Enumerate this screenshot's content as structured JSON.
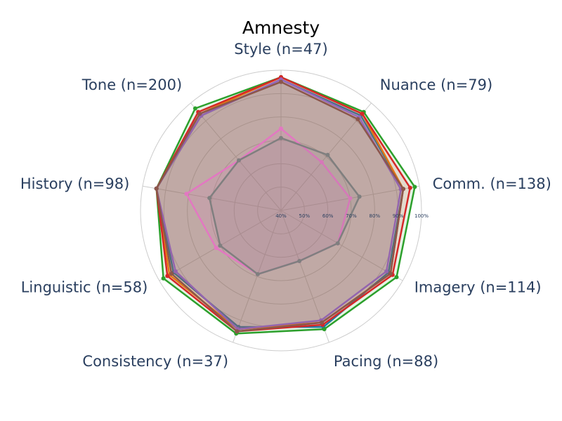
{
  "chart_data": {
    "type": "radar",
    "title": "Amnesty",
    "axes": [
      "Style (n=47)",
      "Nuance (n=79)",
      "Comm. (n=138)",
      "Imagery (n=114)",
      "Pacing (n=88)",
      "Consistency (n=37)",
      "Linguistic (n=58)",
      "History (n=98)",
      "Tone (n=200)"
    ],
    "radial_ticks": [
      "40%",
      "50%",
      "60%",
      "70%",
      "80%",
      "90%",
      "100%"
    ],
    "radial_range": [
      40,
      100
    ],
    "grid": true,
    "legend": "none",
    "series": [
      {
        "color": "#1f77b4",
        "values": [
          96,
          93,
          93,
          93,
          93,
          93,
          93,
          94,
          93
        ]
      },
      {
        "color": "#ff7f0e",
        "values": [
          97,
          94,
          93,
          94,
          91,
          94,
          95,
          94,
          94
        ]
      },
      {
        "color": "#2ca02c",
        "values": [
          97,
          95,
          98,
          97,
          94,
          96,
          98,
          94,
          97
        ]
      },
      {
        "color": "#d62728",
        "values": [
          97,
          94,
          96,
          95,
          92,
          95,
          96,
          94,
          95
        ]
      },
      {
        "color": "#9467bd",
        "values": [
          96,
          92,
          92,
          92,
          90,
          94,
          92,
          94,
          93
        ]
      },
      {
        "color": "#8c564b",
        "values": [
          95,
          91,
          93,
          94,
          91,
          95,
          94,
          94,
          94
        ]
      },
      {
        "color": "#e377c2",
        "values": [
          75,
          67,
          70,
          68,
          63,
          69,
          72,
          81,
          68
        ]
      },
      {
        "color": "#7f7f7f",
        "values": [
          71,
          71,
          74,
          68,
          63,
          69,
          70,
          71,
          68
        ]
      }
    ]
  }
}
